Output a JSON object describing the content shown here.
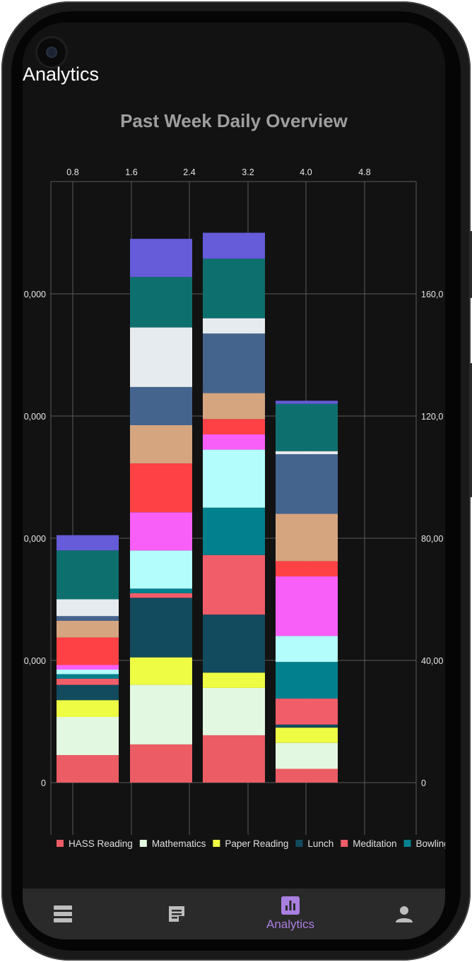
{
  "appbar": {
    "title": "Analytics"
  },
  "chart_data": {
    "type": "bar",
    "title": "Past Week Daily Overview",
    "top_axis_ticks": [
      "0.8",
      "1.6",
      "2.4",
      "3.2",
      "4.0",
      "4.8"
    ],
    "left_axis_ticks": [
      "0",
      "0,000",
      "0,000",
      "0,000",
      "0,000"
    ],
    "right_axis_ticks": [
      "0",
      "40,00",
      "80,00",
      "120,0",
      "160,0"
    ],
    "ylim": [
      0,
      200
    ],
    "stacked": true,
    "grid": true,
    "legend_position": "bottom",
    "series": [
      {
        "name": "HASS Reading",
        "color": "#ec5c64",
        "values": [
          9,
          12.5,
          15.5,
          4.5
        ]
      },
      {
        "name": "Mathematics",
        "color": "#e3f8e0",
        "values": [
          12.5,
          19.5,
          15.5,
          8.5
        ]
      },
      {
        "name": "Paper Reading",
        "color": "#eefd44",
        "values": [
          5.5,
          9,
          5,
          5
        ]
      },
      {
        "name": "Lunch",
        "color": "#124a5e",
        "values": [
          5,
          19.5,
          19,
          1
        ]
      },
      {
        "name": "Meditation",
        "color": "#f15d68",
        "values": [
          2,
          1.5,
          19.5,
          8.5
        ]
      },
      {
        "name": "Bowling",
        "color": "#03808e",
        "values": [
          1.5,
          1.5,
          15.5,
          12
        ]
      },
      {
        "name": "",
        "color": "#b4fdfd",
        "values": [
          1.5,
          12.5,
          19,
          8.5
        ]
      },
      {
        "name": "",
        "color": "#f85ef8",
        "values": [
          1.5,
          12.5,
          5,
          19.5
        ]
      },
      {
        "name": "",
        "color": "#fe4144",
        "values": [
          9,
          16,
          5,
          5
        ]
      },
      {
        "name": "",
        "color": "#d5a580",
        "values": [
          5.5,
          12.5,
          8.5,
          15.5
        ]
      },
      {
        "name": "",
        "color": "#44648e",
        "values": [
          1.5,
          12.5,
          19.5,
          19.5
        ]
      },
      {
        "name": "",
        "color": "#e6ebef",
        "values": [
          5.5,
          19.5,
          5,
          1
        ]
      },
      {
        "name": "",
        "color": "#0e706e",
        "values": [
          16,
          16.5,
          19.5,
          15.5
        ]
      },
      {
        "name": "",
        "color": "#665bd9",
        "values": [
          5,
          12.5,
          8.5,
          1
        ]
      }
    ]
  },
  "bottom_nav": {
    "items": [
      {
        "icon": "list-icon",
        "label": ""
      },
      {
        "icon": "note-icon",
        "label": ""
      },
      {
        "icon": "analytics-icon",
        "label": "Analytics",
        "active": true
      },
      {
        "icon": "person-icon",
        "label": ""
      }
    ]
  },
  "colors": {
    "background": "#121212",
    "nav_bg": "#2a2a2a",
    "accent": "#a97fe0"
  }
}
